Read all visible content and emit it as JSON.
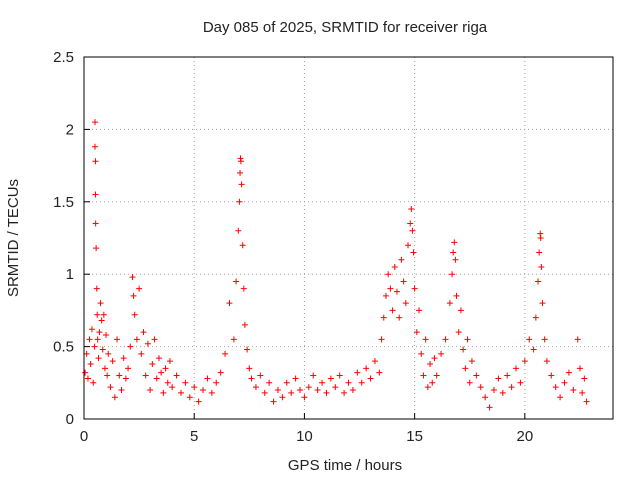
{
  "chart_data": {
    "type": "scatter",
    "title": "Day 085 of 2025, SRMTID for receiver riga",
    "xlabel": "GPS time / hours",
    "ylabel": "SRMTID / TECUs",
    "xlim": [
      0,
      24
    ],
    "ylim": [
      0,
      2.5
    ],
    "x_ticks": [
      0,
      5,
      10,
      15,
      20
    ],
    "y_ticks": [
      0,
      0.5,
      1,
      1.5,
      2,
      2.5
    ],
    "x_tick_labels": [
      "0",
      "5",
      "10",
      "15",
      "20"
    ],
    "y_tick_labels": [
      "0",
      "0.5",
      "1",
      "1.5",
      "2",
      "2.5"
    ],
    "grid": true,
    "marker": "+",
    "series": [
      {
        "name": "SRMTID",
        "color": "#ff0000",
        "points": [
          [
            0.05,
            0.32
          ],
          [
            0.12,
            0.45
          ],
          [
            0.18,
            0.28
          ],
          [
            0.25,
            0.55
          ],
          [
            0.3,
            0.38
          ],
          [
            0.36,
            0.62
          ],
          [
            0.42,
            0.25
          ],
          [
            0.48,
            0.5
          ],
          [
            0.5,
            2.05
          ],
          [
            0.5,
            1.88
          ],
          [
            0.52,
            1.78
          ],
          [
            0.52,
            1.55
          ],
          [
            0.53,
            1.35
          ],
          [
            0.55,
            1.18
          ],
          [
            0.58,
            0.9
          ],
          [
            0.6,
            0.72
          ],
          [
            0.62,
            0.55
          ],
          [
            0.66,
            0.42
          ],
          [
            0.7,
            0.6
          ],
          [
            0.75,
            0.8
          ],
          [
            0.8,
            0.68
          ],
          [
            0.85,
            0.48
          ],
          [
            0.9,
            0.72
          ],
          [
            0.95,
            0.35
          ],
          [
            1.0,
            0.58
          ],
          [
            1.05,
            0.3
          ],
          [
            1.1,
            0.45
          ],
          [
            1.2,
            0.22
          ],
          [
            1.3,
            0.4
          ],
          [
            1.4,
            0.15
          ],
          [
            1.5,
            0.55
          ],
          [
            1.6,
            0.3
          ],
          [
            1.7,
            0.2
          ],
          [
            1.8,
            0.42
          ],
          [
            1.9,
            0.28
          ],
          [
            2.0,
            0.35
          ],
          [
            2.1,
            0.5
          ],
          [
            2.2,
            0.98
          ],
          [
            2.25,
            0.85
          ],
          [
            2.3,
            0.72
          ],
          [
            2.4,
            0.55
          ],
          [
            2.5,
            0.9
          ],
          [
            2.6,
            0.45
          ],
          [
            2.7,
            0.6
          ],
          [
            2.8,
            0.3
          ],
          [
            2.9,
            0.52
          ],
          [
            3.0,
            0.2
          ],
          [
            3.1,
            0.38
          ],
          [
            3.2,
            0.55
          ],
          [
            3.3,
            0.28
          ],
          [
            3.4,
            0.42
          ],
          [
            3.5,
            0.32
          ],
          [
            3.6,
            0.18
          ],
          [
            3.7,
            0.35
          ],
          [
            3.8,
            0.25
          ],
          [
            3.9,
            0.4
          ],
          [
            4.0,
            0.22
          ],
          [
            4.2,
            0.3
          ],
          [
            4.4,
            0.18
          ],
          [
            4.6,
            0.25
          ],
          [
            4.8,
            0.15
          ],
          [
            5.0,
            0.22
          ],
          [
            5.2,
            0.12
          ],
          [
            5.4,
            0.2
          ],
          [
            5.6,
            0.28
          ],
          [
            5.8,
            0.18
          ],
          [
            6.0,
            0.25
          ],
          [
            6.2,
            0.32
          ],
          [
            6.4,
            0.45
          ],
          [
            6.6,
            0.8
          ],
          [
            6.8,
            0.55
          ],
          [
            6.9,
            0.95
          ],
          [
            7.0,
            1.3
          ],
          [
            7.05,
            1.5
          ],
          [
            7.08,
            1.7
          ],
          [
            7.1,
            1.8
          ],
          [
            7.12,
            1.78
          ],
          [
            7.15,
            1.62
          ],
          [
            7.2,
            1.2
          ],
          [
            7.25,
            0.9
          ],
          [
            7.3,
            0.65
          ],
          [
            7.4,
            0.48
          ],
          [
            7.5,
            0.35
          ],
          [
            7.6,
            0.28
          ],
          [
            7.8,
            0.22
          ],
          [
            8.0,
            0.3
          ],
          [
            8.2,
            0.18
          ],
          [
            8.4,
            0.25
          ],
          [
            8.6,
            0.12
          ],
          [
            8.8,
            0.2
          ],
          [
            9.0,
            0.15
          ],
          [
            9.2,
            0.25
          ],
          [
            9.4,
            0.18
          ],
          [
            9.6,
            0.28
          ],
          [
            9.8,
            0.2
          ],
          [
            10.0,
            0.15
          ],
          [
            10.2,
            0.22
          ],
          [
            10.4,
            0.3
          ],
          [
            10.6,
            0.2
          ],
          [
            10.8,
            0.25
          ],
          [
            11.0,
            0.18
          ],
          [
            11.2,
            0.28
          ],
          [
            11.4,
            0.22
          ],
          [
            11.6,
            0.3
          ],
          [
            11.8,
            0.18
          ],
          [
            12.0,
            0.25
          ],
          [
            12.2,
            0.2
          ],
          [
            12.4,
            0.32
          ],
          [
            12.6,
            0.25
          ],
          [
            12.8,
            0.35
          ],
          [
            13.0,
            0.28
          ],
          [
            13.2,
            0.4
          ],
          [
            13.4,
            0.32
          ],
          [
            13.5,
            0.55
          ],
          [
            13.6,
            0.7
          ],
          [
            13.7,
            0.85
          ],
          [
            13.8,
            1.0
          ],
          [
            13.9,
            0.9
          ],
          [
            14.0,
            0.75
          ],
          [
            14.1,
            1.05
          ],
          [
            14.2,
            0.88
          ],
          [
            14.3,
            0.7
          ],
          [
            14.4,
            1.1
          ],
          [
            14.5,
            0.95
          ],
          [
            14.6,
            0.8
          ],
          [
            14.7,
            1.2
          ],
          [
            14.8,
            1.35
          ],
          [
            14.85,
            1.45
          ],
          [
            14.9,
            1.3
          ],
          [
            14.95,
            1.15
          ],
          [
            15.0,
            0.9
          ],
          [
            15.1,
            0.6
          ],
          [
            15.2,
            0.75
          ],
          [
            15.3,
            0.45
          ],
          [
            15.4,
            0.3
          ],
          [
            15.5,
            0.55
          ],
          [
            15.6,
            0.22
          ],
          [
            15.7,
            0.38
          ],
          [
            15.8,
            0.25
          ],
          [
            15.9,
            0.42
          ],
          [
            16.0,
            0.3
          ],
          [
            16.2,
            0.45
          ],
          [
            16.4,
            0.55
          ],
          [
            16.6,
            0.8
          ],
          [
            16.7,
            1.0
          ],
          [
            16.75,
            1.15
          ],
          [
            16.8,
            1.22
          ],
          [
            16.85,
            1.1
          ],
          [
            16.9,
            0.85
          ],
          [
            17.0,
            0.6
          ],
          [
            17.1,
            0.75
          ],
          [
            17.2,
            0.48
          ],
          [
            17.3,
            0.35
          ],
          [
            17.4,
            0.55
          ],
          [
            17.5,
            0.25
          ],
          [
            17.6,
            0.4
          ],
          [
            17.8,
            0.3
          ],
          [
            18.0,
            0.22
          ],
          [
            18.2,
            0.15
          ],
          [
            18.4,
            0.08
          ],
          [
            18.6,
            0.2
          ],
          [
            18.8,
            0.28
          ],
          [
            19.0,
            0.18
          ],
          [
            19.2,
            0.3
          ],
          [
            19.4,
            0.22
          ],
          [
            19.6,
            0.35
          ],
          [
            19.8,
            0.25
          ],
          [
            20.0,
            0.4
          ],
          [
            20.2,
            0.55
          ],
          [
            20.4,
            0.48
          ],
          [
            20.5,
            0.7
          ],
          [
            20.6,
            0.95
          ],
          [
            20.65,
            1.15
          ],
          [
            20.7,
            1.28
          ],
          [
            20.72,
            1.25
          ],
          [
            20.75,
            1.05
          ],
          [
            20.8,
            0.8
          ],
          [
            20.9,
            0.55
          ],
          [
            21.0,
            0.4
          ],
          [
            21.2,
            0.3
          ],
          [
            21.4,
            0.22
          ],
          [
            21.6,
            0.15
          ],
          [
            21.8,
            0.25
          ],
          [
            22.0,
            0.32
          ],
          [
            22.2,
            0.2
          ],
          [
            22.4,
            0.55
          ],
          [
            22.5,
            0.35
          ],
          [
            22.6,
            0.18
          ],
          [
            22.7,
            0.28
          ],
          [
            22.8,
            0.12
          ]
        ]
      }
    ]
  }
}
